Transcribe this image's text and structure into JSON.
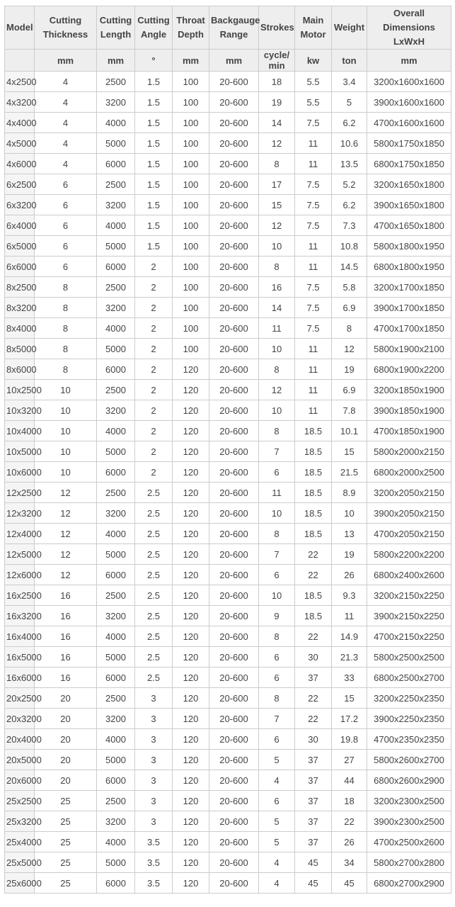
{
  "colors": {
    "header_bg": "#eeeeee",
    "row_header_bg": "#f5f5f5",
    "cell_bg": "#ffffff",
    "border": "#cccccc",
    "text": "#444444"
  },
  "table": {
    "columns": [
      {
        "key": "model",
        "label": "Model",
        "unit": ""
      },
      {
        "key": "cutting-thickness",
        "label": "Cutting Thickness",
        "unit": "mm"
      },
      {
        "key": "cutting-length",
        "label": "Cutting Length",
        "unit": "mm"
      },
      {
        "key": "cutting-angle",
        "label": "Cutting Angle",
        "unit": "°"
      },
      {
        "key": "throat-depth",
        "label": "Throat Depth",
        "unit": "mm"
      },
      {
        "key": "backgauge-range",
        "label": "Backgauge Range",
        "unit": "mm"
      },
      {
        "key": "strokes",
        "label": "Strokes",
        "unit": "cycle/min"
      },
      {
        "key": "main-motor",
        "label": "Main Motor",
        "unit": "kw"
      },
      {
        "key": "weight",
        "label": "Weight",
        "unit": "ton"
      },
      {
        "key": "overall-dimensions",
        "label": "Overall Dimensions LxWxH",
        "unit": "mm"
      }
    ],
    "rows": [
      [
        "4x2500",
        "4",
        "2500",
        "1.5",
        "100",
        "20-600",
        "18",
        "5.5",
        "3.4",
        "3200x1600x1600"
      ],
      [
        "4x3200",
        "4",
        "3200",
        "1.5",
        "100",
        "20-600",
        "19",
        "5.5",
        "5",
        "3900x1600x1600"
      ],
      [
        "4x4000",
        "4",
        "4000",
        "1.5",
        "100",
        "20-600",
        "14",
        "7.5",
        "6.2",
        "4700x1600x1600"
      ],
      [
        "4x5000",
        "4",
        "5000",
        "1.5",
        "100",
        "20-600",
        "12",
        "11",
        "10.6",
        "5800x1750x1850"
      ],
      [
        "4x6000",
        "4",
        "6000",
        "1.5",
        "100",
        "20-600",
        "8",
        "11",
        "13.5",
        "6800x1750x1850"
      ],
      [
        "6x2500",
        "6",
        "2500",
        "1.5",
        "100",
        "20-600",
        "17",
        "7.5",
        "5.2",
        "3200x1650x1800"
      ],
      [
        "6x3200",
        "6",
        "3200",
        "1.5",
        "100",
        "20-600",
        "15",
        "7.5",
        "6.2",
        "3900x1650x1800"
      ],
      [
        "6x4000",
        "6",
        "4000",
        "1.5",
        "100",
        "20-600",
        "12",
        "7.5",
        "7.3",
        "4700x1650x1800"
      ],
      [
        "6x5000",
        "6",
        "5000",
        "1.5",
        "100",
        "20-600",
        "10",
        "11",
        "10.8",
        "5800x1800x1950"
      ],
      [
        "6x6000",
        "6",
        "6000",
        "2",
        "100",
        "20-600",
        "8",
        "11",
        "14.5",
        "6800x1800x1950"
      ],
      [
        "8x2500",
        "8",
        "2500",
        "2",
        "100",
        "20-600",
        "16",
        "7.5",
        "5.8",
        "3200x1700x1850"
      ],
      [
        "8x3200",
        "8",
        "3200",
        "2",
        "100",
        "20-600",
        "14",
        "7.5",
        "6.9",
        "3900x1700x1850"
      ],
      [
        "8x4000",
        "8",
        "4000",
        "2",
        "100",
        "20-600",
        "11",
        "7.5",
        "8",
        "4700x1700x1850"
      ],
      [
        "8x5000",
        "8",
        "5000",
        "2",
        "100",
        "20-600",
        "10",
        "11",
        "12",
        "5800x1900x2100"
      ],
      [
        "8x6000",
        "8",
        "6000",
        "2",
        "120",
        "20-600",
        "8",
        "11",
        "19",
        "6800x1900x2200"
      ],
      [
        "10x2500",
        "10",
        "2500",
        "2",
        "120",
        "20-600",
        "12",
        "11",
        "6.9",
        "3200x1850x1900"
      ],
      [
        "10x3200",
        "10",
        "3200",
        "2",
        "120",
        "20-600",
        "10",
        "11",
        "7.8",
        "3900x1850x1900"
      ],
      [
        "10x4000",
        "10",
        "4000",
        "2",
        "120",
        "20-600",
        "8",
        "18.5",
        "10.1",
        "4700x1850x1900"
      ],
      [
        "10x5000",
        "10",
        "5000",
        "2",
        "120",
        "20-600",
        "7",
        "18.5",
        "15",
        "5800x2000x2150"
      ],
      [
        "10x6000",
        "10",
        "6000",
        "2",
        "120",
        "20-600",
        "6",
        "18.5",
        "21.5",
        "6800x2000x2500"
      ],
      [
        "12x2500",
        "12",
        "2500",
        "2.5",
        "120",
        "20-600",
        "11",
        "18.5",
        "8.9",
        "3200x2050x2150"
      ],
      [
        "12x3200",
        "12",
        "3200",
        "2.5",
        "120",
        "20-600",
        "10",
        "18.5",
        "10",
        "3900x2050x2150"
      ],
      [
        "12x4000",
        "12",
        "4000",
        "2.5",
        "120",
        "20-600",
        "8",
        "18.5",
        "13",
        "4700x2050x2150"
      ],
      [
        "12x5000",
        "12",
        "5000",
        "2.5",
        "120",
        "20-600",
        "7",
        "22",
        "19",
        "5800x2200x2200"
      ],
      [
        "12x6000",
        "12",
        "6000",
        "2.5",
        "120",
        "20-600",
        "6",
        "22",
        "26",
        "6800x2400x2600"
      ],
      [
        "16x2500",
        "16",
        "2500",
        "2.5",
        "120",
        "20-600",
        "10",
        "18.5",
        "9.3",
        "3200x2150x2250"
      ],
      [
        "16x3200",
        "16",
        "3200",
        "2.5",
        "120",
        "20-600",
        "9",
        "18.5",
        "11",
        "3900x2150x2250"
      ],
      [
        "16x4000",
        "16",
        "4000",
        "2.5",
        "120",
        "20-600",
        "8",
        "22",
        "14.9",
        "4700x2150x2250"
      ],
      [
        "16x5000",
        "16",
        "5000",
        "2.5",
        "120",
        "20-600",
        "6",
        "30",
        "21.3",
        "5800x2500x2500"
      ],
      [
        "16x6000",
        "16",
        "6000",
        "2.5",
        "120",
        "20-600",
        "6",
        "37",
        "33",
        "6800x2500x2700"
      ],
      [
        "20x2500",
        "20",
        "2500",
        "3",
        "120",
        "20-600",
        "8",
        "22",
        "15",
        "3200x2250x2350"
      ],
      [
        "20x3200",
        "20",
        "3200",
        "3",
        "120",
        "20-600",
        "7",
        "22",
        "17.2",
        "3900x2250x2350"
      ],
      [
        "20x4000",
        "20",
        "4000",
        "3",
        "120",
        "20-600",
        "6",
        "30",
        "19.8",
        "4700x2350x2350"
      ],
      [
        "20x5000",
        "20",
        "5000",
        "3",
        "120",
        "20-600",
        "5",
        "37",
        "27",
        "5800x2600x2700"
      ],
      [
        "20x6000",
        "20",
        "6000",
        "3",
        "120",
        "20-600",
        "4",
        "37",
        "44",
        "6800x2600x2900"
      ],
      [
        "25x2500",
        "25",
        "2500",
        "3",
        "120",
        "20-600",
        "6",
        "37",
        "18",
        "3200x2300x2500"
      ],
      [
        "25x3200",
        "25",
        "3200",
        "3",
        "120",
        "20-600",
        "5",
        "37",
        "22",
        "3900x2300x2500"
      ],
      [
        "25x4000",
        "25",
        "4000",
        "3.5",
        "120",
        "20-600",
        "5",
        "37",
        "26",
        "4700x2500x2600"
      ],
      [
        "25x5000",
        "25",
        "5000",
        "3.5",
        "120",
        "20-600",
        "4",
        "45",
        "34",
        "5800x2700x2800"
      ],
      [
        "25x6000",
        "25",
        "6000",
        "3.5",
        "120",
        "20-600",
        "4",
        "45",
        "45",
        "6800x2700x2900"
      ]
    ]
  }
}
